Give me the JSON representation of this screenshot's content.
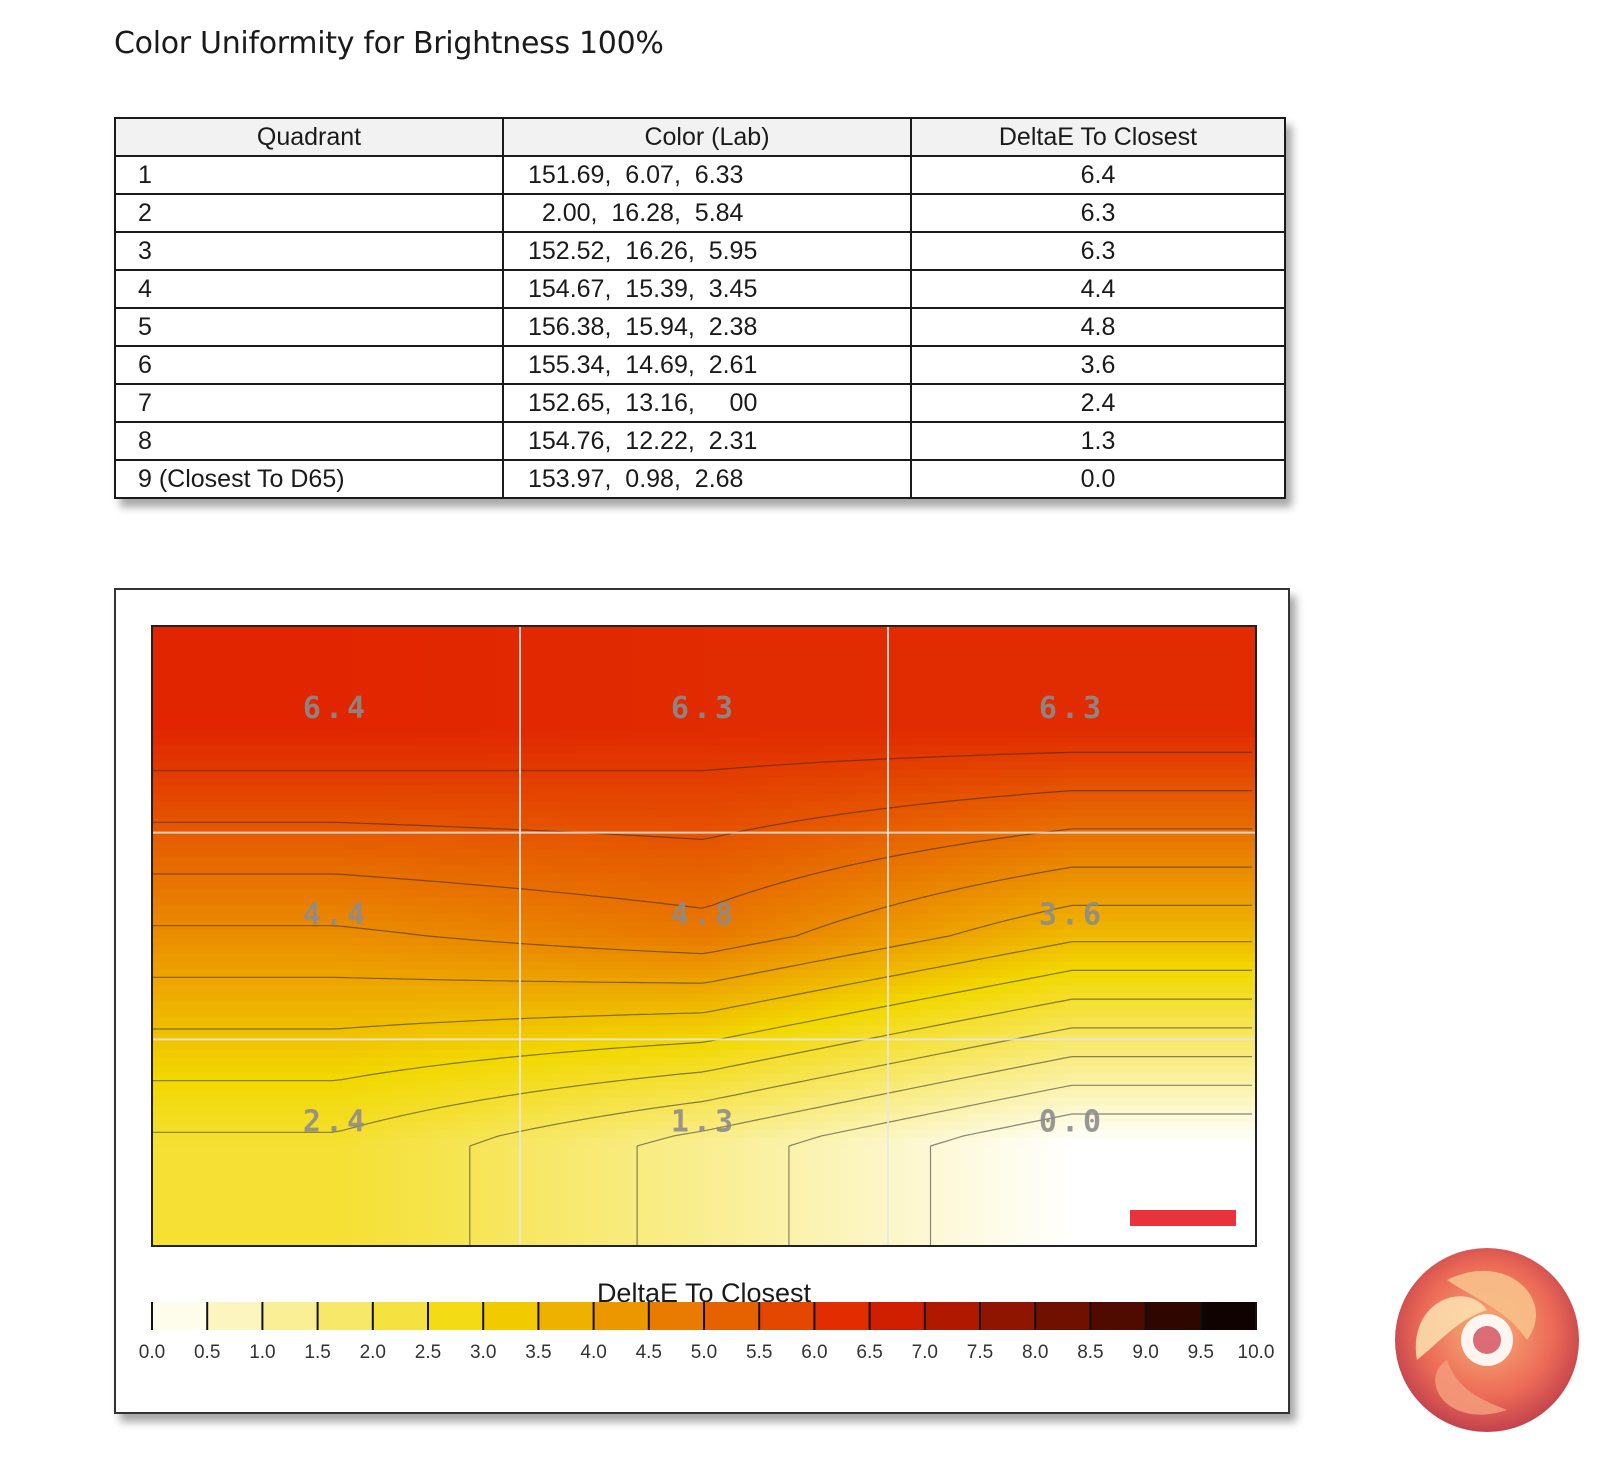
{
  "page": {
    "title": "Color Uniformity for Brightness 100%"
  },
  "table": {
    "headers": [
      "Quadrant",
      "Color (Lab)",
      "DeltaE To Closest"
    ],
    "rows": [
      {
        "quadrant": "1",
        "lab": "151.69,  6.07,  6.33",
        "deltae": "6.4"
      },
      {
        "quadrant": "2",
        "lab": "  2.00,  16.28,  5.84",
        "deltae": "6.3"
      },
      {
        "quadrant": "3",
        "lab": "152.52,  16.26,  5.95",
        "deltae": "6.3"
      },
      {
        "quadrant": "4",
        "lab": "154.67,  15.39,  3.45",
        "deltae": "4.4"
      },
      {
        "quadrant": "5",
        "lab": "156.38,  15.94,  2.38",
        "deltae": "4.8"
      },
      {
        "quadrant": "6",
        "lab": "155.34,  14.69,  2.61",
        "deltae": "3.6"
      },
      {
        "quadrant": "7",
        "lab": "152.65,  13.16,     00",
        "deltae": "2.4"
      },
      {
        "quadrant": "8",
        "lab": "154.76,  12.22,  2.31",
        "deltae": "1.3"
      },
      {
        "quadrant": "9 (Closest To D65)",
        "lab": "153.97,  0.98,  2.68",
        "deltae": "0.0"
      }
    ]
  },
  "chart_data": {
    "type": "heatmap",
    "grid": {
      "rows": 3,
      "cols": 3
    },
    "values": [
      [
        6.4,
        6.3,
        6.3
      ],
      [
        4.4,
        4.8,
        3.6
      ],
      [
        2.4,
        1.3,
        0.0
      ]
    ],
    "labels": [
      [
        "6.4",
        "6.3",
        "6.3"
      ],
      [
        "4.4",
        "4.8",
        "3.6"
      ],
      [
        "2.4",
        "1.3",
        "0.0"
      ]
    ],
    "colorbar": {
      "title": "DeltaE To Closest",
      "range": [
        0,
        10
      ],
      "ticks": [
        "0.0",
        "0.5",
        "1.0",
        "1.5",
        "2.0",
        "2.5",
        "3.0",
        "3.5",
        "4.0",
        "4.5",
        "5.0",
        "5.5",
        "6.0",
        "6.5",
        "7.0",
        "7.5",
        "8.0",
        "8.5",
        "9.0",
        "9.5",
        "10.0"
      ]
    },
    "colors": {
      "low": "#ffffff",
      "mid": "#f2d800",
      "high": "#e02000",
      "max": "#000000",
      "marker": "#e8323c"
    }
  }
}
